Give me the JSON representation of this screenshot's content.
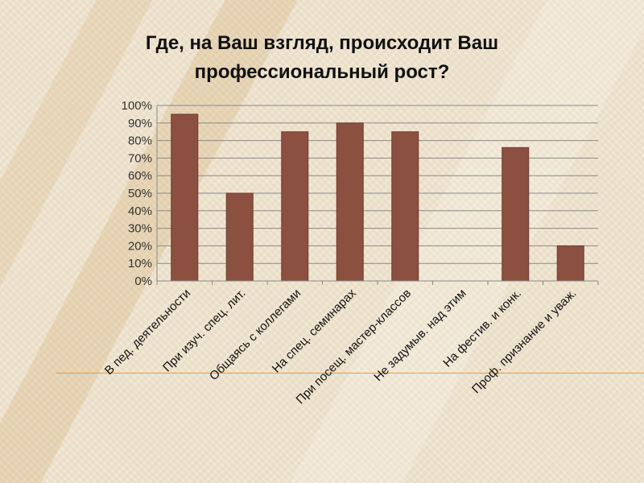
{
  "slide": {
    "title_lines": [
      "Где, на Ваш взгляд, происходит Ваш",
      "профессиональный рост?"
    ]
  },
  "chart_data": {
    "type": "bar",
    "title": "Где, на Ваш взгляд, происходит Ваш профессиональный рост?",
    "categories": [
      "В пед. деятельности",
      "При изуч. спец. лит.",
      "Общаясь с коллегами",
      "На спец. семинарах",
      "При посещ. мастер-классов",
      "Не задумыв. над этим",
      "На фестив. и конк.",
      "Проф. признание и уваж."
    ],
    "values": [
      95,
      50,
      85,
      90,
      85,
      0,
      76,
      20
    ],
    "ylim": [
      0,
      100
    ],
    "yticks": [
      "0%",
      "10%",
      "20%",
      "30%",
      "40%",
      "50%",
      "60%",
      "70%",
      "80%",
      "90%",
      "100%"
    ],
    "xlabel": "",
    "ylabel": "",
    "grid": true,
    "colors": {
      "bar": "#8c5040",
      "bar_stroke": "#6f3b2e",
      "grid": "#8a8a8a"
    }
  }
}
